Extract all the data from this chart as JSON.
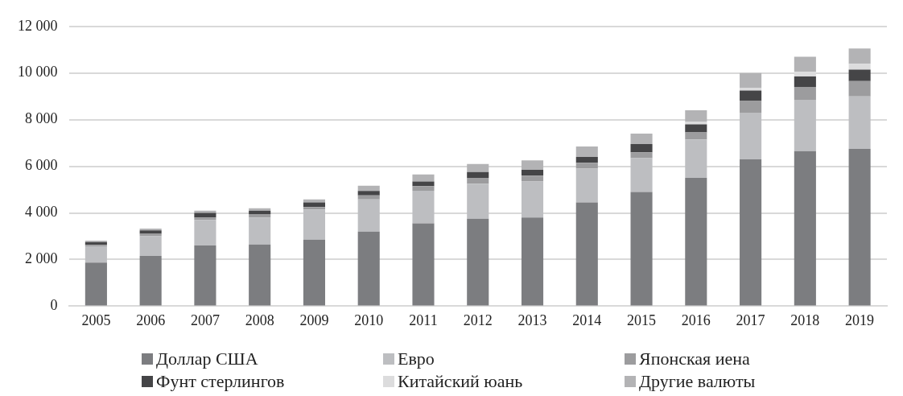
{
  "chart_data": {
    "type": "bar",
    "stacked": true,
    "categories": [
      "2005",
      "2006",
      "2007",
      "2008",
      "2009",
      "2010",
      "2011",
      "2012",
      "2013",
      "2014",
      "2015",
      "2016",
      "2017",
      "2018",
      "2019"
    ],
    "series": [
      {
        "name": "Доллар США",
        "color": "#7c7d80",
        "values": [
          1870,
          2150,
          2600,
          2650,
          2850,
          3200,
          3550,
          3750,
          3800,
          4450,
          4900,
          5500,
          6300,
          6650,
          6750
        ]
      },
      {
        "name": "Евро",
        "color": "#bdbec1",
        "values": [
          700,
          850,
          1100,
          1150,
          1300,
          1380,
          1400,
          1500,
          1550,
          1450,
          1450,
          1650,
          2000,
          2200,
          2250
        ]
      },
      {
        "name": "Японская иена",
        "color": "#9c9c9e",
        "values": [
          60,
          100,
          100,
          150,
          100,
          170,
          200,
          250,
          250,
          250,
          250,
          300,
          500,
          550,
          650
        ]
      },
      {
        "name": "Фунт стерлингов",
        "color": "#454547",
        "values": [
          120,
          150,
          200,
          150,
          200,
          190,
          200,
          250,
          250,
          250,
          350,
          350,
          450,
          450,
          500
        ]
      },
      {
        "name": "Китайский юань",
        "color": "#dcdcdd",
        "values": [
          0,
          0,
          0,
          0,
          0,
          0,
          0,
          0,
          0,
          0,
          0,
          100,
          100,
          200,
          250
        ]
      },
      {
        "name": "Другие валюты",
        "color": "#b3b3b5",
        "values": [
          60,
          80,
          100,
          100,
          130,
          230,
          300,
          350,
          400,
          450,
          450,
          500,
          650,
          650,
          650
        ]
      }
    ],
    "ylim": [
      0,
      12000
    ],
    "yticks": [
      0,
      {
        "value": 2000,
        "label": "2 000"
      },
      {
        "value": 4000,
        "label": "4 000"
      },
      {
        "value": 6000,
        "label": "6 000"
      },
      {
        "value": 8000,
        "label": "8 000"
      },
      {
        "value": 10000,
        "label": "10 000"
      },
      {
        "value": 12000,
        "label": "12 000"
      }
    ],
    "grid": "y",
    "legend": "bottom"
  }
}
